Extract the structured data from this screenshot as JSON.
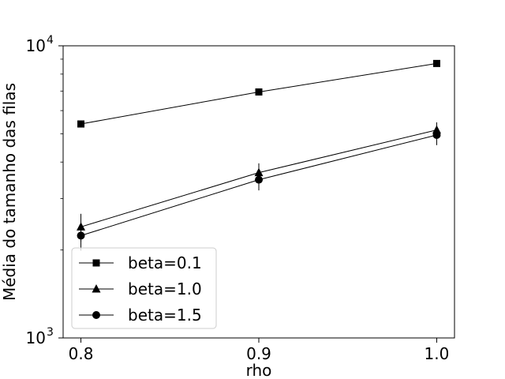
{
  "chart_data": {
    "type": "line",
    "title": "",
    "xlabel": "rho",
    "ylabel": "Média do tamanho das filas",
    "x": [
      0.8,
      0.9,
      1.0
    ],
    "x_tick_labels": [
      "0.8",
      "0.9",
      "1.0"
    ],
    "xlim": [
      0.79,
      1.01
    ],
    "yscale": "log",
    "ylim": [
      1000,
      10000
    ],
    "y_ticks": [
      {
        "base": "10",
        "exp": "3",
        "value": 1000
      },
      {
        "base": "10",
        "exp": "4",
        "value": 10000
      }
    ],
    "grid": false,
    "legend_position": "lower-left",
    "line_color": "#000000",
    "series": [
      {
        "name": "beta=0.1",
        "marker": "square",
        "values": [
          5400,
          6950,
          8700
        ],
        "errors": [
          120,
          110,
          150
        ]
      },
      {
        "name": "beta=1.0",
        "marker": "triangle",
        "values": [
          2400,
          3680,
          5150
        ],
        "errors": [
          260,
          280,
          320
        ]
      },
      {
        "name": "beta=1.5",
        "marker": "circle",
        "values": [
          2240,
          3480,
          4950
        ],
        "errors": [
          250,
          280,
          380
        ]
      }
    ]
  }
}
